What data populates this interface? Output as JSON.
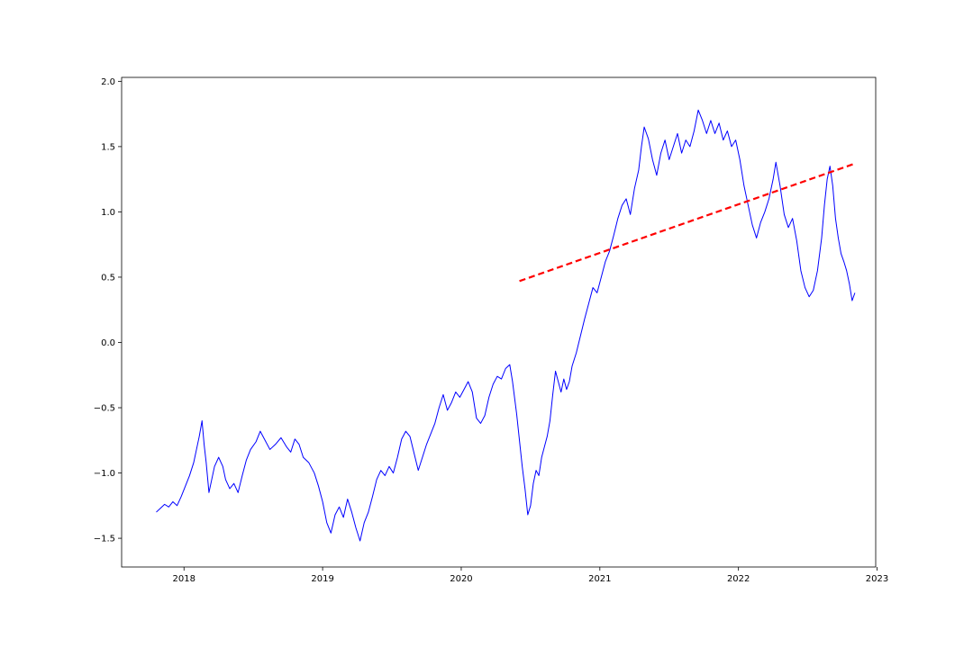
{
  "chart_data": {
    "type": "line",
    "title": "",
    "xlabel": "",
    "ylabel": "",
    "xlim": [
      2017.55,
      2022.99
    ],
    "ylim": [
      -1.72,
      2.03
    ],
    "x_ticks": [
      2018,
      2019,
      2020,
      2021,
      2022,
      2023
    ],
    "x_tick_labels": [
      "2018",
      "2019",
      "2020",
      "2021",
      "2022",
      "2023"
    ],
    "y_ticks": [
      -1.5,
      -1.0,
      -0.5,
      0.0,
      0.5,
      1.0,
      1.5,
      2.0
    ],
    "y_tick_labels": [
      "−1.5",
      "−1.0",
      "−0.5",
      "0.0",
      "0.5",
      "1.0",
      "1.5",
      "2.0"
    ],
    "grid": false,
    "series": [
      {
        "color": "#0000ff",
        "style": "solid",
        "points": [
          [
            2017.8,
            -1.3
          ],
          [
            2017.83,
            -1.27
          ],
          [
            2017.86,
            -1.24
          ],
          [
            2017.89,
            -1.26
          ],
          [
            2017.92,
            -1.22
          ],
          [
            2017.95,
            -1.25
          ],
          [
            2017.98,
            -1.18
          ],
          [
            2018.01,
            -1.1
          ],
          [
            2018.04,
            -1.02
          ],
          [
            2018.07,
            -0.92
          ],
          [
            2018.09,
            -0.82
          ],
          [
            2018.11,
            -0.72
          ],
          [
            2018.13,
            -0.6
          ],
          [
            2018.145,
            -0.78
          ],
          [
            2018.16,
            -0.92
          ],
          [
            2018.18,
            -1.15
          ],
          [
            2018.2,
            -1.05
          ],
          [
            2018.22,
            -0.95
          ],
          [
            2018.25,
            -0.88
          ],
          [
            2018.28,
            -0.95
          ],
          [
            2018.3,
            -1.05
          ],
          [
            2018.33,
            -1.12
          ],
          [
            2018.36,
            -1.08
          ],
          [
            2018.39,
            -1.15
          ],
          [
            2018.42,
            -1.02
          ],
          [
            2018.45,
            -0.9
          ],
          [
            2018.48,
            -0.82
          ],
          [
            2018.52,
            -0.76
          ],
          [
            2018.55,
            -0.68
          ],
          [
            2018.58,
            -0.74
          ],
          [
            2018.62,
            -0.82
          ],
          [
            2018.66,
            -0.78
          ],
          [
            2018.7,
            -0.73
          ],
          [
            2018.74,
            -0.8
          ],
          [
            2018.77,
            -0.84
          ],
          [
            2018.8,
            -0.74
          ],
          [
            2018.83,
            -0.78
          ],
          [
            2018.86,
            -0.88
          ],
          [
            2018.9,
            -0.92
          ],
          [
            2018.94,
            -1.0
          ],
          [
            2018.97,
            -1.1
          ],
          [
            2019.0,
            -1.22
          ],
          [
            2019.03,
            -1.38
          ],
          [
            2019.06,
            -1.46
          ],
          [
            2019.09,
            -1.32
          ],
          [
            2019.12,
            -1.26
          ],
          [
            2019.15,
            -1.34
          ],
          [
            2019.18,
            -1.2
          ],
          [
            2019.21,
            -1.3
          ],
          [
            2019.24,
            -1.42
          ],
          [
            2019.27,
            -1.52
          ],
          [
            2019.3,
            -1.38
          ],
          [
            2019.33,
            -1.3
          ],
          [
            2019.36,
            -1.18
          ],
          [
            2019.39,
            -1.05
          ],
          [
            2019.42,
            -0.98
          ],
          [
            2019.45,
            -1.02
          ],
          [
            2019.48,
            -0.95
          ],
          [
            2019.51,
            -1.0
          ],
          [
            2019.54,
            -0.88
          ],
          [
            2019.57,
            -0.74
          ],
          [
            2019.6,
            -0.68
          ],
          [
            2019.63,
            -0.72
          ],
          [
            2019.66,
            -0.85
          ],
          [
            2019.69,
            -0.98
          ],
          [
            2019.72,
            -0.88
          ],
          [
            2019.75,
            -0.78
          ],
          [
            2019.78,
            -0.7
          ],
          [
            2019.81,
            -0.62
          ],
          [
            2019.84,
            -0.5
          ],
          [
            2019.87,
            -0.4
          ],
          [
            2019.9,
            -0.52
          ],
          [
            2019.93,
            -0.46
          ],
          [
            2019.96,
            -0.38
          ],
          [
            2019.99,
            -0.42
          ],
          [
            2020.02,
            -0.36
          ],
          [
            2020.05,
            -0.3
          ],
          [
            2020.08,
            -0.38
          ],
          [
            2020.11,
            -0.58
          ],
          [
            2020.14,
            -0.62
          ],
          [
            2020.17,
            -0.56
          ],
          [
            2020.2,
            -0.42
          ],
          [
            2020.23,
            -0.32
          ],
          [
            2020.26,
            -0.26
          ],
          [
            2020.29,
            -0.28
          ],
          [
            2020.32,
            -0.2
          ],
          [
            2020.35,
            -0.17
          ],
          [
            2020.37,
            -0.3
          ],
          [
            2020.4,
            -0.55
          ],
          [
            2020.42,
            -0.75
          ],
          [
            2020.44,
            -0.95
          ],
          [
            2020.46,
            -1.12
          ],
          [
            2020.48,
            -1.32
          ],
          [
            2020.5,
            -1.25
          ],
          [
            2020.52,
            -1.08
          ],
          [
            2020.54,
            -0.98
          ],
          [
            2020.56,
            -1.02
          ],
          [
            2020.58,
            -0.88
          ],
          [
            2020.6,
            -0.8
          ],
          [
            2020.62,
            -0.72
          ],
          [
            2020.64,
            -0.6
          ],
          [
            2020.66,
            -0.4
          ],
          [
            2020.68,
            -0.22
          ],
          [
            2020.7,
            -0.3
          ],
          [
            2020.72,
            -0.38
          ],
          [
            2020.74,
            -0.28
          ],
          [
            2020.76,
            -0.36
          ],
          [
            2020.78,
            -0.3
          ],
          [
            2020.8,
            -0.18
          ],
          [
            2020.83,
            -0.08
          ],
          [
            2020.86,
            0.05
          ],
          [
            2020.89,
            0.18
          ],
          [
            2020.92,
            0.3
          ],
          [
            2020.95,
            0.42
          ],
          [
            2020.98,
            0.38
          ],
          [
            2021.01,
            0.5
          ],
          [
            2021.04,
            0.62
          ],
          [
            2021.07,
            0.7
          ],
          [
            2021.1,
            0.82
          ],
          [
            2021.13,
            0.95
          ],
          [
            2021.16,
            1.05
          ],
          [
            2021.19,
            1.1
          ],
          [
            2021.22,
            0.98
          ],
          [
            2021.25,
            1.18
          ],
          [
            2021.28,
            1.32
          ],
          [
            2021.3,
            1.5
          ],
          [
            2021.32,
            1.65
          ],
          [
            2021.35,
            1.56
          ],
          [
            2021.38,
            1.4
          ],
          [
            2021.41,
            1.28
          ],
          [
            2021.44,
            1.45
          ],
          [
            2021.47,
            1.55
          ],
          [
            2021.5,
            1.4
          ],
          [
            2021.53,
            1.5
          ],
          [
            2021.56,
            1.6
          ],
          [
            2021.59,
            1.45
          ],
          [
            2021.62,
            1.55
          ],
          [
            2021.65,
            1.5
          ],
          [
            2021.68,
            1.62
          ],
          [
            2021.71,
            1.78
          ],
          [
            2021.74,
            1.7
          ],
          [
            2021.77,
            1.6
          ],
          [
            2021.8,
            1.7
          ],
          [
            2021.83,
            1.6
          ],
          [
            2021.86,
            1.68
          ],
          [
            2021.89,
            1.55
          ],
          [
            2021.92,
            1.62
          ],
          [
            2021.95,
            1.5
          ],
          [
            2021.98,
            1.55
          ],
          [
            2022.01,
            1.4
          ],
          [
            2022.04,
            1.2
          ],
          [
            2022.07,
            1.05
          ],
          [
            2022.1,
            0.9
          ],
          [
            2022.13,
            0.8
          ],
          [
            2022.16,
            0.92
          ],
          [
            2022.19,
            1.0
          ],
          [
            2022.22,
            1.1
          ],
          [
            2022.25,
            1.25
          ],
          [
            2022.27,
            1.38
          ],
          [
            2022.3,
            1.2
          ],
          [
            2022.33,
            0.98
          ],
          [
            2022.36,
            0.88
          ],
          [
            2022.39,
            0.95
          ],
          [
            2022.42,
            0.78
          ],
          [
            2022.45,
            0.55
          ],
          [
            2022.48,
            0.42
          ],
          [
            2022.51,
            0.35
          ],
          [
            2022.54,
            0.4
          ],
          [
            2022.57,
            0.55
          ],
          [
            2022.6,
            0.8
          ],
          [
            2022.62,
            1.05
          ],
          [
            2022.64,
            1.25
          ],
          [
            2022.66,
            1.35
          ],
          [
            2022.68,
            1.2
          ],
          [
            2022.7,
            0.95
          ],
          [
            2022.72,
            0.8
          ],
          [
            2022.74,
            0.68
          ],
          [
            2022.76,
            0.62
          ],
          [
            2022.78,
            0.55
          ],
          [
            2022.8,
            0.45
          ],
          [
            2022.82,
            0.32
          ],
          [
            2022.84,
            0.38
          ]
        ]
      },
      {
        "color": "#ff0000",
        "style": "dashed",
        "points": [
          [
            2020.42,
            0.47
          ],
          [
            2022.84,
            1.37
          ]
        ]
      }
    ]
  }
}
